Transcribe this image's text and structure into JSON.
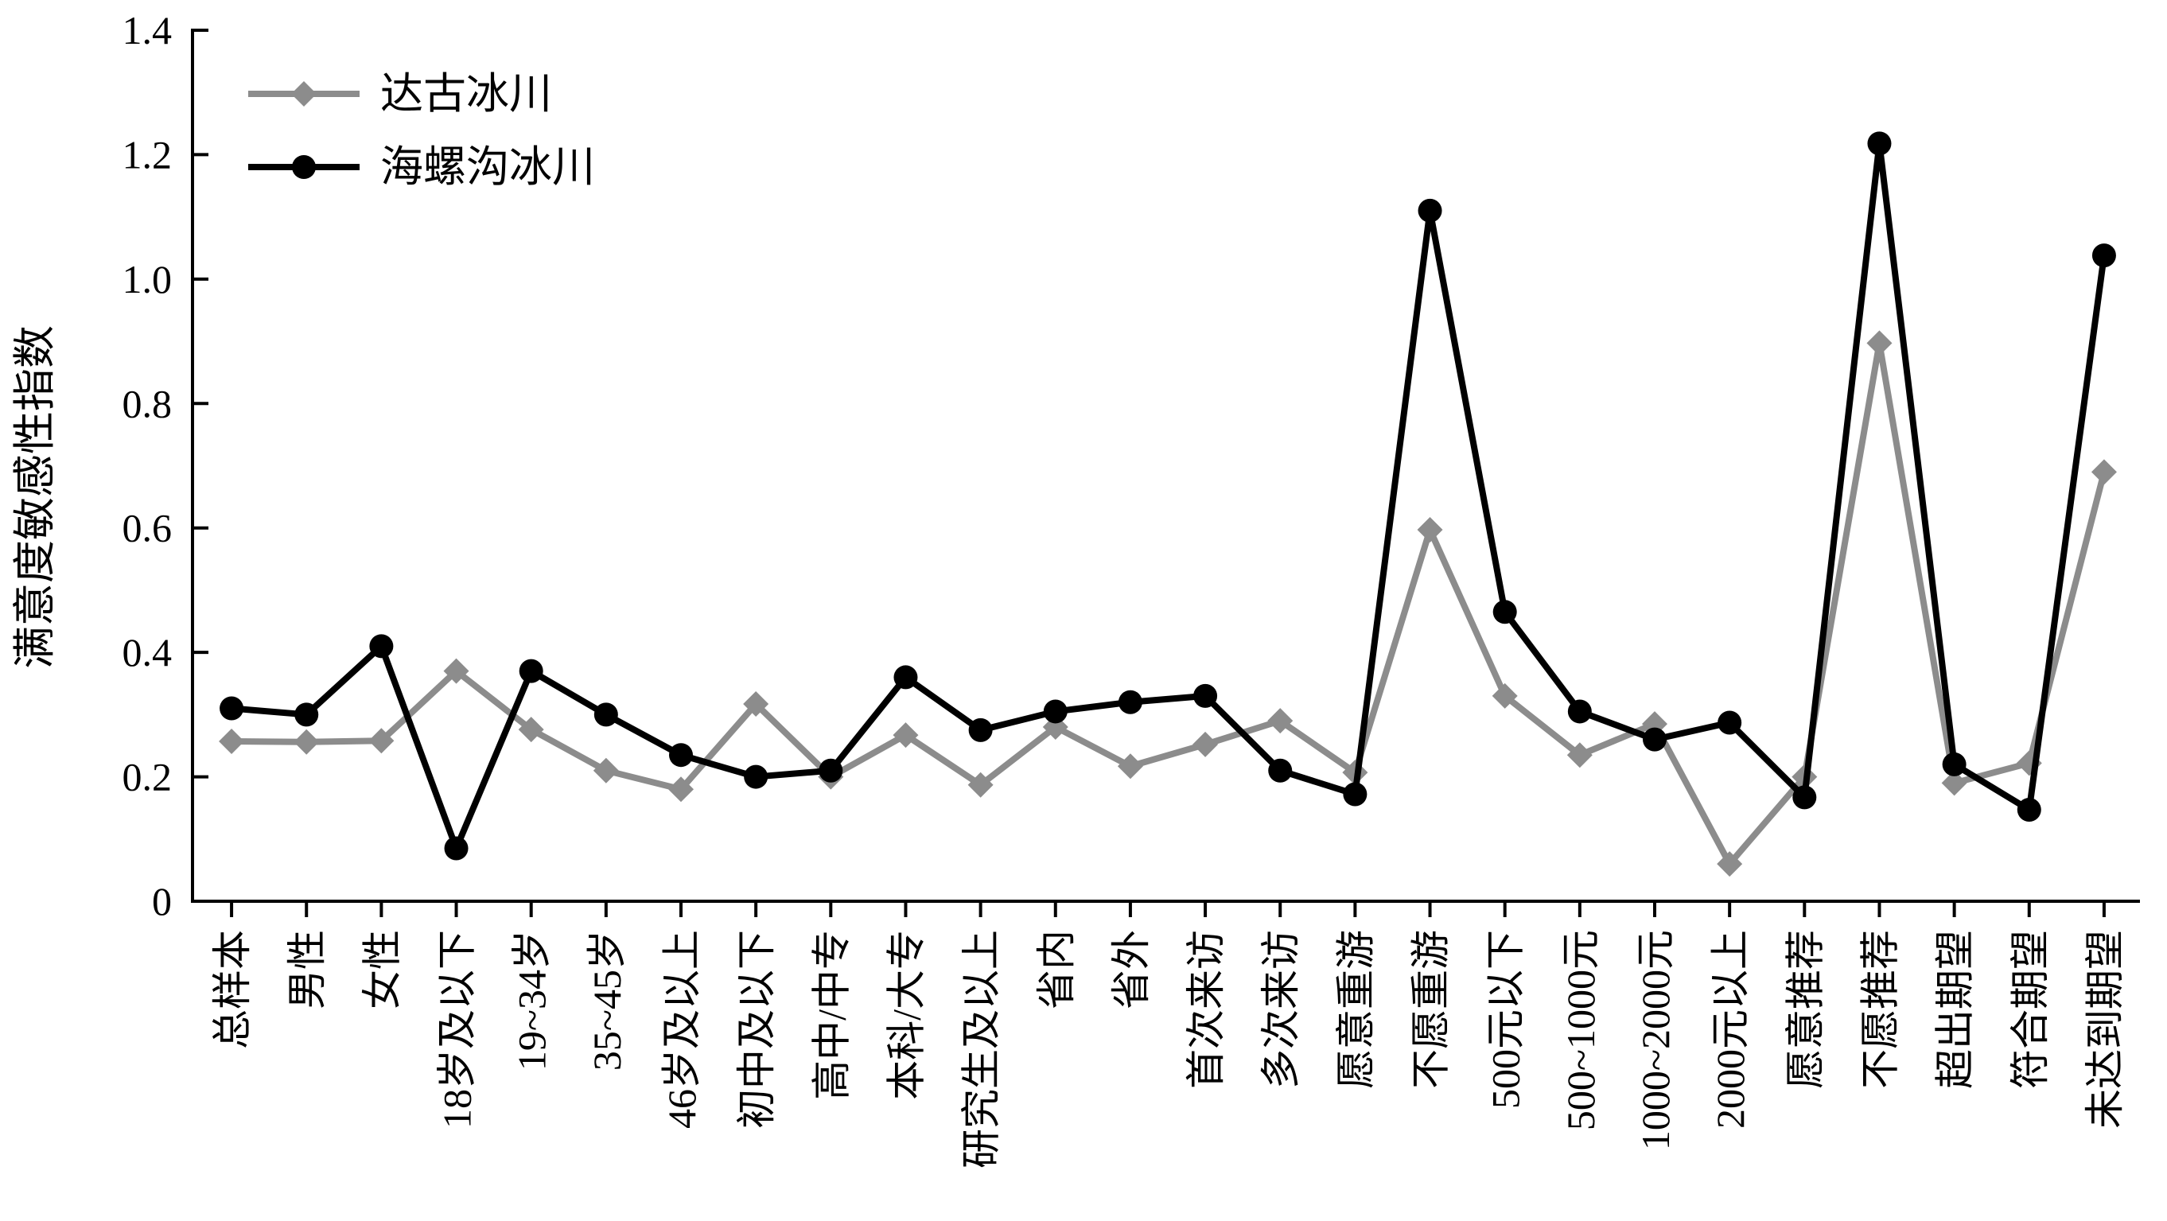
{
  "chart_data": {
    "type": "line",
    "title": "",
    "xlabel": "",
    "ylabel": "满意度敏感性指数",
    "ylim": [
      0,
      1.4
    ],
    "yticks": [
      0,
      0.2,
      0.4,
      0.6,
      0.8,
      1.0,
      1.2,
      1.4
    ],
    "ytick_labels": [
      "0",
      "0.2",
      "0.4",
      "0.6",
      "0.8",
      "1.0",
      "1.2",
      "1.4"
    ],
    "grid": false,
    "legend_position": "top-left",
    "categories": [
      "总样本",
      "男性",
      "女性",
      "18岁及以下",
      "19~34岁",
      "35~45岁",
      "46岁及以上",
      "初中及以下",
      "高中/中专",
      "本科/大专",
      "研究生及以上",
      "省内",
      "省外",
      "首次来访",
      "多次来访",
      "愿意重游",
      "不愿重游",
      "500元以下",
      "500~1000元",
      "1000~2000元",
      "2000元以上",
      "愿意推荐",
      "不愿推荐",
      "超出期望",
      "符合期望",
      "未达到期望"
    ],
    "series": [
      {
        "name": "达古冰川",
        "color": "#8c8c8c",
        "marker": "diamond",
        "values": [
          0.257,
          0.256,
          0.258,
          0.37,
          0.276,
          0.21,
          0.18,
          0.317,
          0.2,
          0.267,
          0.187,
          0.28,
          0.217,
          0.252,
          0.29,
          0.207,
          0.597,
          0.33,
          0.235,
          0.285,
          0.06,
          0.2,
          0.897,
          0.19,
          0.222,
          0.69
        ]
      },
      {
        "name": "海螺沟冰川",
        "color": "#000000",
        "marker": "circle",
        "values": [
          0.31,
          0.3,
          0.41,
          0.085,
          0.37,
          0.3,
          0.235,
          0.2,
          0.21,
          0.36,
          0.275,
          0.305,
          0.32,
          0.33,
          0.21,
          0.172,
          1.11,
          0.465,
          0.305,
          0.26,
          0.287,
          0.167,
          1.218,
          0.22,
          0.147,
          1.038
        ]
      }
    ]
  }
}
